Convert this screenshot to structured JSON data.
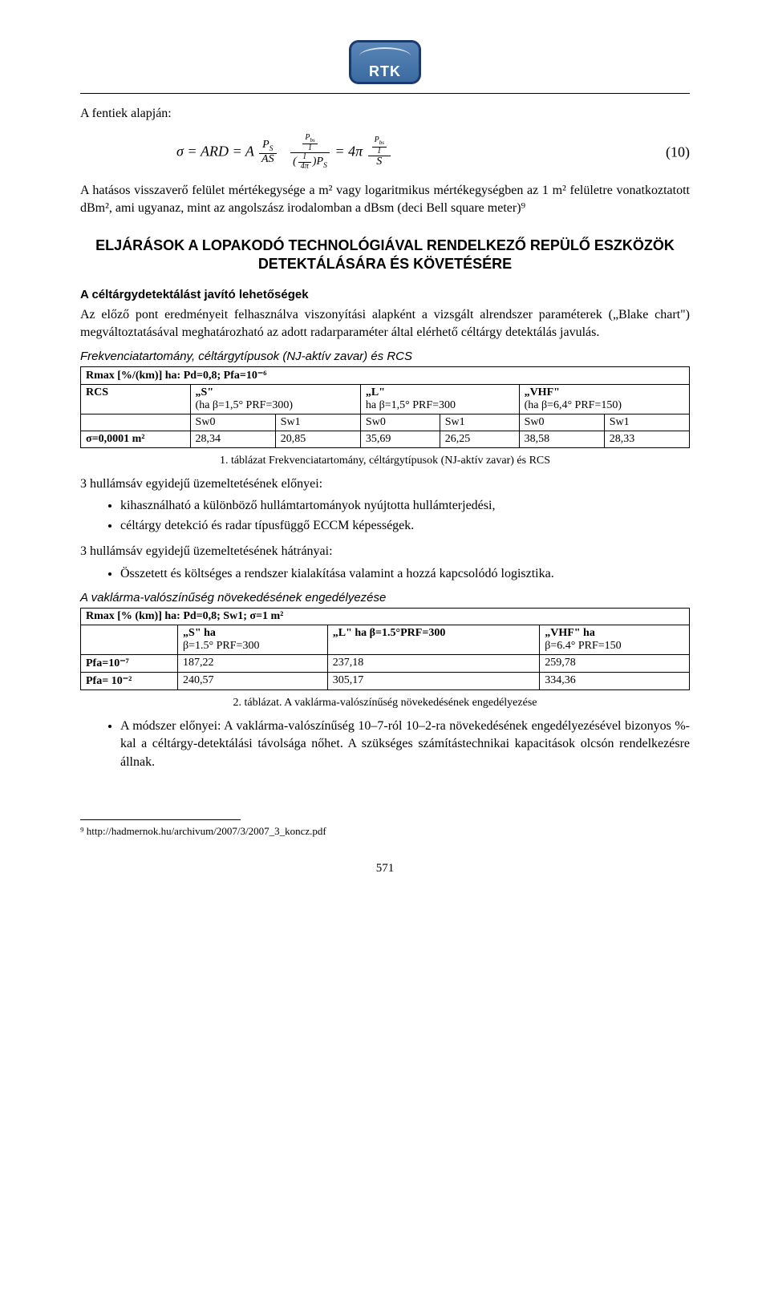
{
  "logo": {
    "text": "RTK"
  },
  "intro": "A fentiek alapján:",
  "eq": {
    "number": "(10)",
    "sigma": "σ",
    "eq1": " = ARD = A ",
    "eq2": " = 4π ",
    "Ps": "P",
    "Ps_sub": "S",
    "AS": "AS",
    "Pbs": "P",
    "Pbs_sub": "bs",
    "one": "1",
    "fourpi": "4π",
    "S": "S"
  },
  "para1": "A hatásos visszaverő felület mértékegysége a m² vagy logaritmikus mértékegységben az 1 m² felületre vonatkoztatott dBm², ami ugyanaz, mint az angolszász irodalomban a dBsm (deci Bell square meter)⁹",
  "section_title": "ELJÁRÁSOK A LOPAKODÓ TECHNOLÓGIÁVAL RENDELKEZŐ REPÜLŐ ESZKÖZÖK DETEKTÁLÁSÁRA ÉS KÖVETÉSÉRE",
  "sub1": "A céltárgydetektálást javító lehetőségek",
  "para2": "Az előző pont eredményeit felhasználva viszonyítási alapként a vizsgált alrendszer paraméterek („Blake chart\") megváltoztatásával meghatározható az adott radarparaméter által elérhető céltárgy detektálás javulás.",
  "italic1": "Frekvenciatartomány, céltárgytípusok (NJ-aktív zavar) és RCS",
  "table1": {
    "header_row": "Rmax [%/(km)] ha: Pd=0,8; Pfa=10⁻⁶",
    "r1c1": "RCS",
    "r1c2a": "„S\"",
    "r1c2b": "(ha β=1,5° PRF=300)",
    "r1c3a": "„L\"",
    "r1c3b": "ha β=1,5° PRF=300",
    "r1c4a": "„VHF\"",
    "r1c4b": "(ha β=6,4° PRF=150)",
    "sw0": "Sw0",
    "sw1": "Sw1",
    "sigma_label": "σ=0,0001 m²",
    "v1": "28,34",
    "v2": "20,85",
    "v3": "35,69",
    "v4": "26,25",
    "v5": "38,58",
    "v6": "28,33"
  },
  "caption1": "1. táblázat Frekvenciatartomány, céltárgytípusok (NJ-aktív zavar) és RCS",
  "para3": "3 hullámsáv egyidejű üzemeltetésének előnyei:",
  "bullets1": [
    "kihasználható a különböző hullámtartományok nyújtotta hullámterjedési,",
    "céltárgy detekció és radar típusfüggő ECCM képességek."
  ],
  "para4": "3 hullámsáv egyidejű üzemeltetésének hátrányai:",
  "bullets2": [
    "Összetett és költséges a rendszer kialakítása valamint a hozzá kapcsolódó logisztika."
  ],
  "italic2": "A vaklárma-valószínűség növekedésének engedélyezése",
  "table2": {
    "header_row": "Rmax [% (km)] ha: Pd=0,8; Sw1; σ=1 m²",
    "c2a": "„S\" ha",
    "c2b": "β=1.5° PRF=300",
    "c3": "„L\" ha β=1.5°PRF=300",
    "c4a": "„VHF\" ha",
    "c4b": "β=6.4° PRF=150",
    "r1lab": "Pfa=10⁻⁷",
    "r1v1": "187,22",
    "r1v2": "237,18",
    "r1v3": "259,78",
    "r2lab": "Pfa= 10⁻²",
    "r2v1": "240,57",
    "r2v2": "305,17",
    "r2v3": "334,36"
  },
  "caption2": "2. táblázat. A vaklárma-valószínűség növekedésének engedélyezése",
  "bullets3": [
    "A módszer előnyei: A vaklárma-valószínűség 10–7-ról 10–2-ra növekedésének engedélyezésével bizonyos %-kal a céltárgy-detektálási távolsága nőhet. A szükséges számítástechnikai kapacitások olcsón rendelkezésre állnak."
  ],
  "footnote": "⁹ http://hadmernok.hu/archivum/2007/3/2007_3_koncz.pdf",
  "pagenum": "571"
}
